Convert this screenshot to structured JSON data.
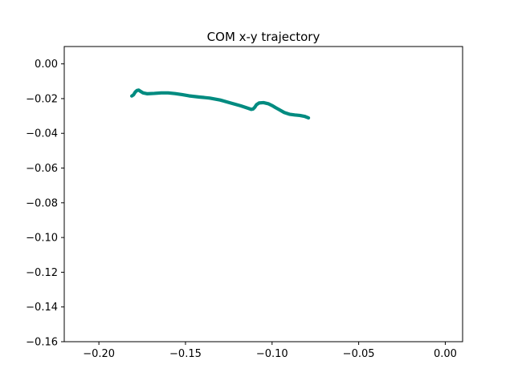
{
  "chart_data": {
    "type": "line",
    "title": "COM x-y trajectory",
    "xlabel": "",
    "ylabel": "",
    "xlim": [
      -0.22,
      0.01
    ],
    "ylim": [
      -0.16,
      0.01
    ],
    "xticks": [
      -0.2,
      -0.15,
      -0.1,
      -0.05,
      0.0
    ],
    "xtick_labels": [
      "−0.20",
      "−0.15",
      "−0.10",
      "−0.05",
      "0.00"
    ],
    "yticks": [
      0.0,
      -0.02,
      -0.04,
      -0.06,
      -0.08,
      -0.1,
      -0.12,
      -0.14,
      -0.16
    ],
    "ytick_labels": [
      "0.00",
      "−0.02",
      "−0.04",
      "−0.06",
      "−0.08",
      "−0.10",
      "−0.12",
      "−0.14",
      "−0.16"
    ],
    "grid": false,
    "series": [
      {
        "color": "#008b80",
        "x": [
          -0.181,
          -0.18,
          -0.179,
          -0.178,
          -0.177,
          -0.176,
          -0.1745,
          -0.172,
          -0.168,
          -0.164,
          -0.16,
          -0.156,
          -0.152,
          -0.148,
          -0.142,
          -0.136,
          -0.13,
          -0.124,
          -0.118,
          -0.114,
          -0.112,
          -0.111,
          -0.11,
          -0.109,
          -0.1075,
          -0.105,
          -0.102,
          -0.1,
          -0.098,
          -0.096,
          -0.093,
          -0.09,
          -0.087,
          -0.084,
          -0.081,
          -0.079
        ],
        "y": [
          -0.0185,
          -0.0178,
          -0.0162,
          -0.0153,
          -0.0151,
          -0.0158,
          -0.0167,
          -0.0172,
          -0.017,
          -0.0167,
          -0.0167,
          -0.0171,
          -0.0177,
          -0.0184,
          -0.0191,
          -0.0197,
          -0.0208,
          -0.0225,
          -0.0242,
          -0.0255,
          -0.0262,
          -0.026,
          -0.025,
          -0.0235,
          -0.0225,
          -0.0223,
          -0.023,
          -0.024,
          -0.0252,
          -0.0263,
          -0.028,
          -0.029,
          -0.0294,
          -0.0297,
          -0.0303,
          -0.0311
        ]
      }
    ]
  }
}
